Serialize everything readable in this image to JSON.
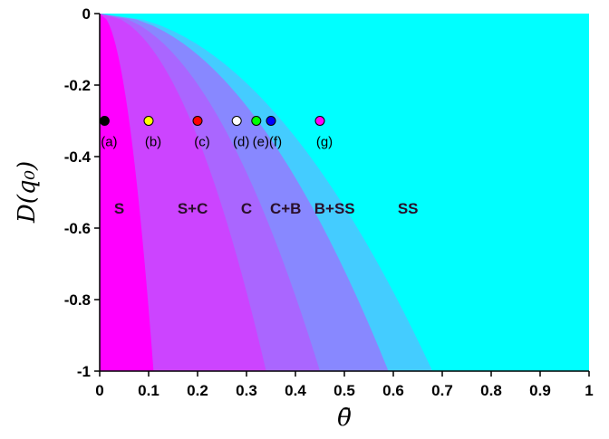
{
  "chart_data": {
    "type": "area",
    "xlabel": "θ̄",
    "ylabel": "D(q₀)",
    "xlim": [
      0,
      1
    ],
    "ylim": [
      -1,
      0
    ],
    "x_ticks": [
      "0",
      "0.1",
      "0.2",
      "0.3",
      "0.4",
      "0.5",
      "0.6",
      "0.7",
      "0.8",
      "0.9",
      "1"
    ],
    "y_ticks": [
      "0",
      "-0.2",
      "-0.4",
      "-0.6",
      "-0.8",
      "-1"
    ],
    "regions": [
      {
        "name": "S",
        "color": "#ff00ff",
        "boundary_x_at_y_minus1": 0.11
      },
      {
        "name": "S+C",
        "color": "#cc44ff",
        "boundary_x_at_y_minus1": 0.34
      },
      {
        "name": "C",
        "color": "#aa66ff",
        "boundary_x_at_y_minus1": 0.45
      },
      {
        "name": "C+B",
        "color": "#8888ff",
        "boundary_x_at_y_minus1": 0.59
      },
      {
        "name": "B+SS",
        "color": "#44ccff",
        "boundary_x_at_y_minus1": 0.68
      },
      {
        "name": "SS",
        "color": "#00ffff",
        "boundary_x_at_y_minus1": 1.0
      }
    ],
    "region_labels": [
      {
        "text": "S",
        "x": 0.04,
        "y": -0.56
      },
      {
        "text": "S+C",
        "x": 0.19,
        "y": -0.56
      },
      {
        "text": "C",
        "x": 0.3,
        "y": -0.56
      },
      {
        "text": "C+B",
        "x": 0.38,
        "y": -0.56
      },
      {
        "text": "B+SS",
        "x": 0.48,
        "y": -0.56
      },
      {
        "text": "SS",
        "x": 0.63,
        "y": -0.56
      }
    ],
    "points": [
      {
        "label": "(a)",
        "x": 0.01,
        "y": -0.3,
        "color": "#000000"
      },
      {
        "label": "(b)",
        "x": 0.1,
        "y": -0.3,
        "color": "#ffff00"
      },
      {
        "label": "(c)",
        "x": 0.2,
        "y": -0.3,
        "color": "#ff0000"
      },
      {
        "label": "(d)",
        "x": 0.28,
        "y": -0.3,
        "color": "#ffffff"
      },
      {
        "label": "(e)",
        "x": 0.32,
        "y": -0.3,
        "color": "#00ff00"
      },
      {
        "label": "(f)",
        "x": 0.35,
        "y": -0.3,
        "color": "#0000ff"
      },
      {
        "label": "(g)",
        "x": 0.45,
        "y": -0.3,
        "color": "#ff00ff"
      }
    ]
  }
}
